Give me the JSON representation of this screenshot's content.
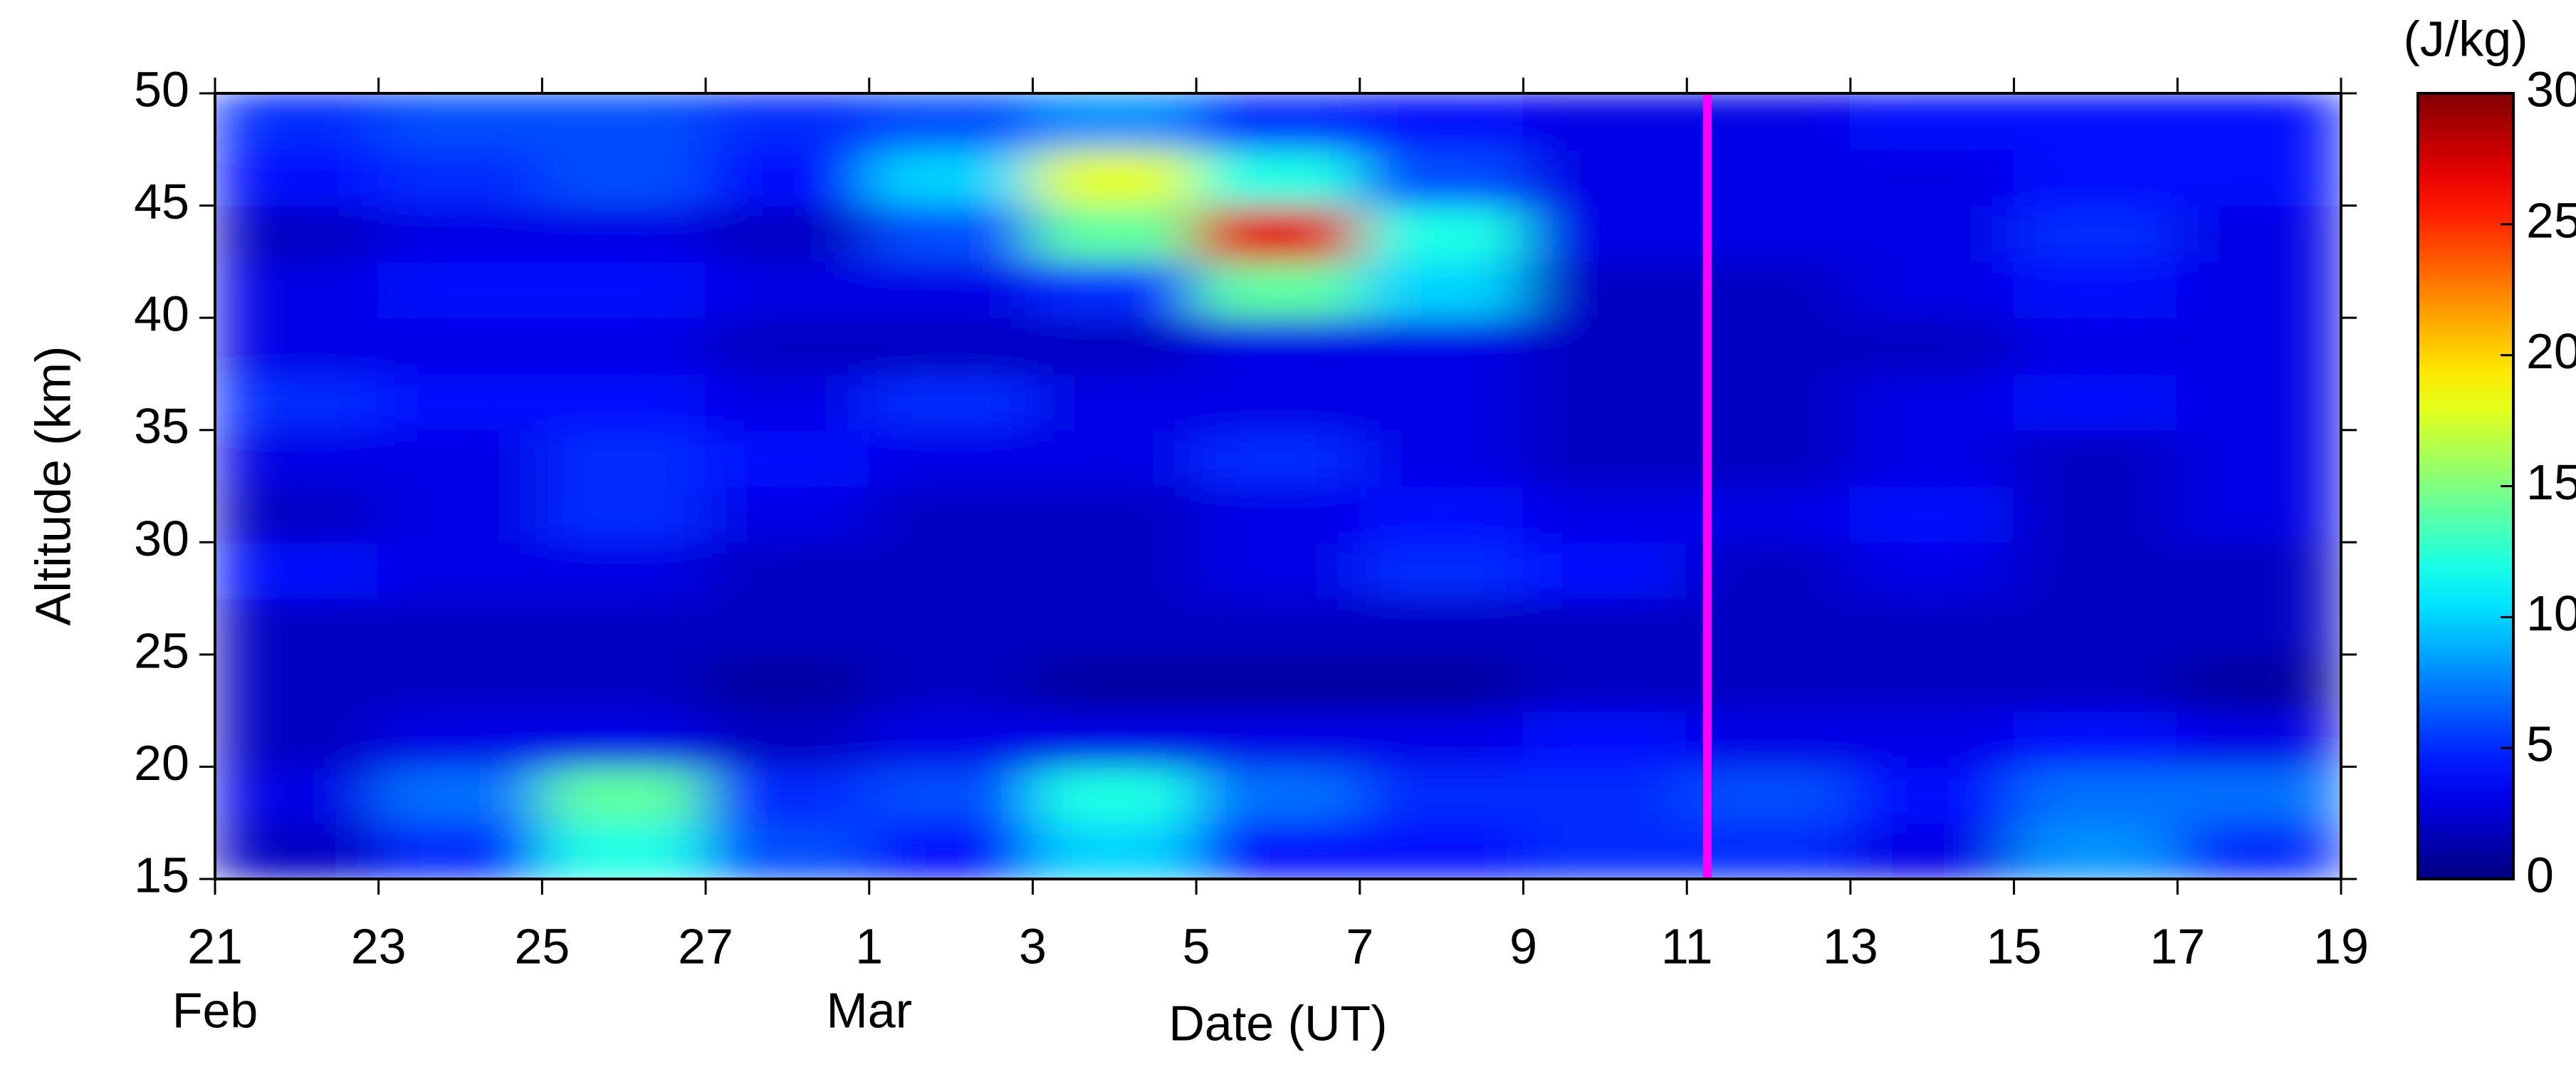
{
  "chart_data": {
    "type": "heatmap",
    "x_label": "Date (UT)",
    "y_label": "Altitude (km)",
    "colorbar_label": "(J/kg)",
    "month_labels": [
      {
        "value": 0,
        "label": "Feb"
      },
      {
        "value": 8,
        "label": "Mar"
      }
    ],
    "xlim": [
      0,
      26
    ],
    "xticks": [
      {
        "value": 0,
        "label": "21"
      },
      {
        "value": 2,
        "label": "23"
      },
      {
        "value": 4,
        "label": "25"
      },
      {
        "value": 6,
        "label": "27"
      },
      {
        "value": 8,
        "label": "1"
      },
      {
        "value": 10,
        "label": "3"
      },
      {
        "value": 12,
        "label": "5"
      },
      {
        "value": 14,
        "label": "7"
      },
      {
        "value": 16,
        "label": "9"
      },
      {
        "value": 18,
        "label": "11"
      },
      {
        "value": 20,
        "label": "13"
      },
      {
        "value": 22,
        "label": "15"
      },
      {
        "value": 24,
        "label": "17"
      },
      {
        "value": 26,
        "label": "19"
      }
    ],
    "ylim": [
      15,
      50
    ],
    "yticks": [
      15,
      20,
      25,
      30,
      35,
      40,
      45,
      50
    ],
    "clim": [
      0,
      30
    ],
    "cticks": [
      0,
      5,
      10,
      15,
      20,
      25,
      30
    ],
    "colormap": "jet",
    "x": [
      1,
      3,
      5,
      7,
      9,
      11,
      13,
      15,
      17,
      19,
      21,
      23,
      25
    ],
    "y": [
      16.25,
      18.75,
      21.25,
      23.75,
      26.25,
      28.75,
      31.25,
      33.75,
      36.25,
      38.75,
      41.25,
      43.75,
      46.25,
      48.75
    ],
    "z": [
      [
        2,
        5,
        12,
        6,
        4,
        10,
        4,
        4,
        5,
        5,
        3,
        8,
        5
      ],
      [
        3,
        7,
        14,
        5,
        6,
        12,
        7,
        5,
        5,
        6,
        4,
        7,
        7
      ],
      [
        2,
        3,
        3,
        2,
        3,
        3,
        3,
        3,
        4,
        3,
        3,
        4,
        3
      ],
      [
        2,
        2,
        2,
        1,
        2,
        1,
        1,
        1,
        2,
        2,
        2,
        2,
        1
      ],
      [
        2,
        2,
        2,
        2,
        2,
        2,
        2,
        2,
        2,
        2,
        2,
        2,
        2
      ],
      [
        4,
        3,
        3,
        2,
        2,
        2,
        3,
        5,
        4,
        2,
        3,
        2,
        2
      ],
      [
        2,
        3,
        5,
        3,
        2,
        2,
        3,
        4,
        3,
        3,
        4,
        2,
        3
      ],
      [
        3,
        3,
        5,
        4,
        3,
        3,
        5,
        3,
        2,
        2,
        3,
        2,
        3
      ],
      [
        5,
        4,
        4,
        3,
        5,
        3,
        3,
        3,
        2,
        2,
        3,
        4,
        3
      ],
      [
        3,
        3,
        3,
        2,
        2,
        2,
        3,
        3,
        2,
        2,
        2,
        3,
        3
      ],
      [
        3,
        4,
        4,
        3,
        3,
        5,
        14,
        10,
        2,
        2,
        3,
        4,
        3
      ],
      [
        2,
        3,
        3,
        2,
        6,
        14,
        27,
        12,
        3,
        3,
        3,
        5,
        3
      ],
      [
        4,
        5,
        6,
        4,
        10,
        18,
        12,
        6,
        3,
        3,
        3,
        4,
        4
      ],
      [
        5,
        6,
        6,
        5,
        6,
        8,
        5,
        4,
        3,
        3,
        4,
        4,
        4
      ]
    ],
    "marker_x": 18.25,
    "marker_color": "#ff00ff"
  }
}
